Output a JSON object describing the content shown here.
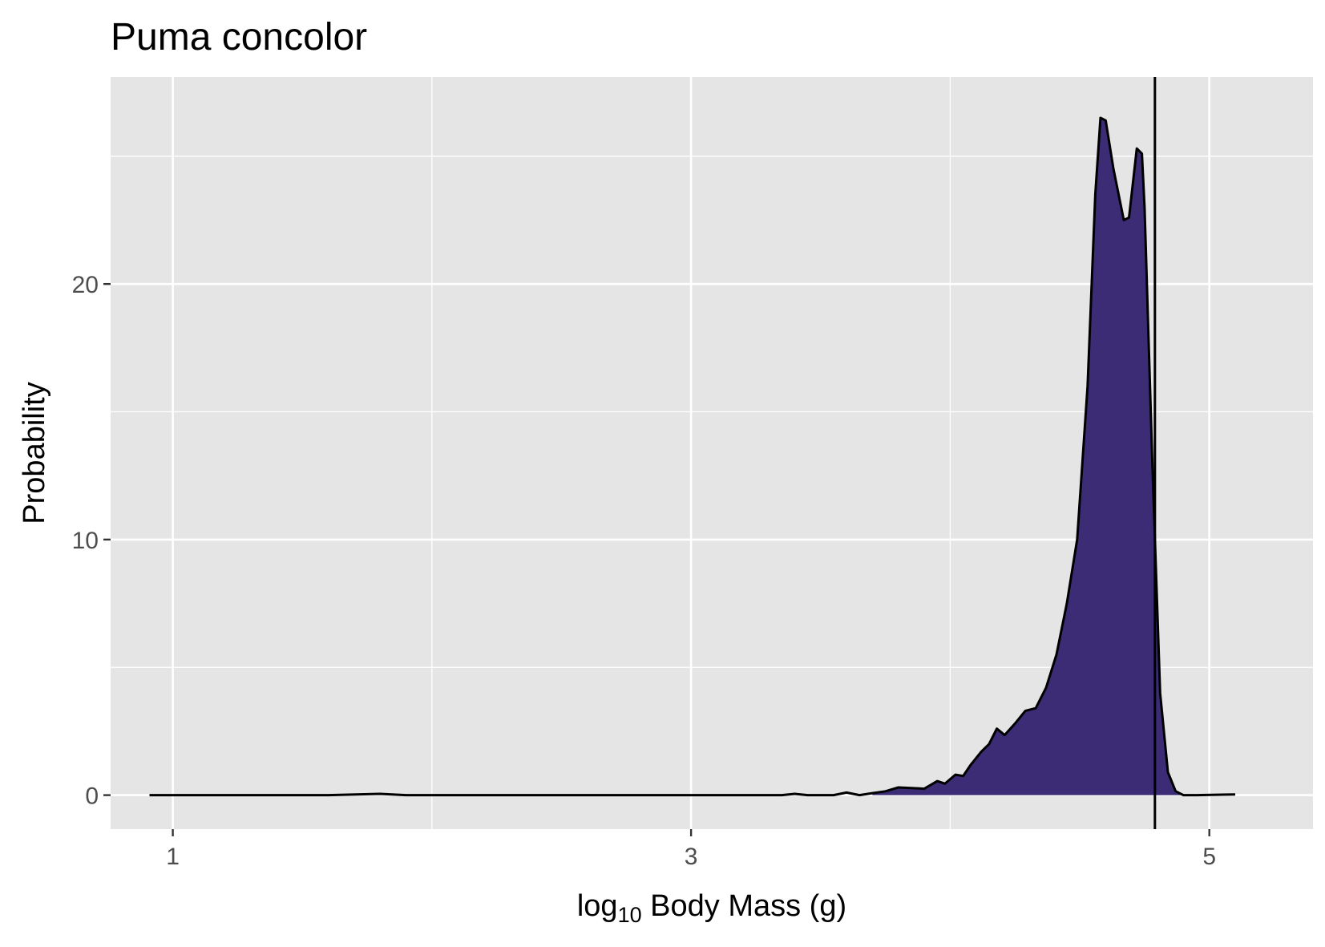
{
  "chart_data": {
    "type": "area",
    "title": "Puma concolor",
    "xlabel_main": "log",
    "xlabel_sub": "10",
    "xlabel_rest": " Body Mass (g)",
    "ylabel": "Probability",
    "xlim": [
      0.76,
      5.4
    ],
    "ylim": [
      -1.33,
      28.1
    ],
    "x_ticks": [
      1,
      3,
      5
    ],
    "x_tick_labels": [
      "1",
      "3",
      "5"
    ],
    "y_ticks": [
      0,
      10,
      20
    ],
    "y_tick_labels": [
      "0",
      "10",
      "20"
    ],
    "x_minor_gridlines": [
      2,
      4
    ],
    "y_minor_gridlines": [
      5,
      15,
      25
    ],
    "fill_start_x": 3.7,
    "fill_color": "#3b2c75",
    "line_color": "#000000",
    "panel_background": "#e5e5e5",
    "grid_color": "#ffffff",
    "vertical_line_x": 4.79,
    "density": [
      [
        0.91,
        0.0
      ],
      [
        1.6,
        0.0
      ],
      [
        1.8,
        0.05
      ],
      [
        1.9,
        0.0
      ],
      [
        3.0,
        0.0
      ],
      [
        3.35,
        0.0
      ],
      [
        3.4,
        0.05
      ],
      [
        3.45,
        0.0
      ],
      [
        3.55,
        0.0
      ],
      [
        3.6,
        0.1
      ],
      [
        3.65,
        0.0
      ],
      [
        3.7,
        0.08
      ],
      [
        3.75,
        0.15
      ],
      [
        3.8,
        0.3
      ],
      [
        3.85,
        0.28
      ],
      [
        3.9,
        0.25
      ],
      [
        3.95,
        0.55
      ],
      [
        3.98,
        0.45
      ],
      [
        4.02,
        0.8
      ],
      [
        4.05,
        0.75
      ],
      [
        4.08,
        1.2
      ],
      [
        4.12,
        1.7
      ],
      [
        4.15,
        2.0
      ],
      [
        4.18,
        2.6
      ],
      [
        4.21,
        2.35
      ],
      [
        4.25,
        2.8
      ],
      [
        4.29,
        3.3
      ],
      [
        4.33,
        3.4
      ],
      [
        4.37,
        4.2
      ],
      [
        4.41,
        5.5
      ],
      [
        4.45,
        7.5
      ],
      [
        4.49,
        10.0
      ],
      [
        4.53,
        16.0
      ],
      [
        4.56,
        23.5
      ],
      [
        4.58,
        26.5
      ],
      [
        4.6,
        26.4
      ],
      [
        4.63,
        24.5
      ],
      [
        4.67,
        22.5
      ],
      [
        4.69,
        22.6
      ],
      [
        4.72,
        25.3
      ],
      [
        4.74,
        25.1
      ],
      [
        4.75,
        23.0
      ],
      [
        4.78,
        13.0
      ],
      [
        4.81,
        4.0
      ],
      [
        4.84,
        0.9
      ],
      [
        4.87,
        0.15
      ],
      [
        4.9,
        0.0
      ],
      [
        4.95,
        0.0
      ],
      [
        5.1,
        0.03
      ]
    ]
  }
}
